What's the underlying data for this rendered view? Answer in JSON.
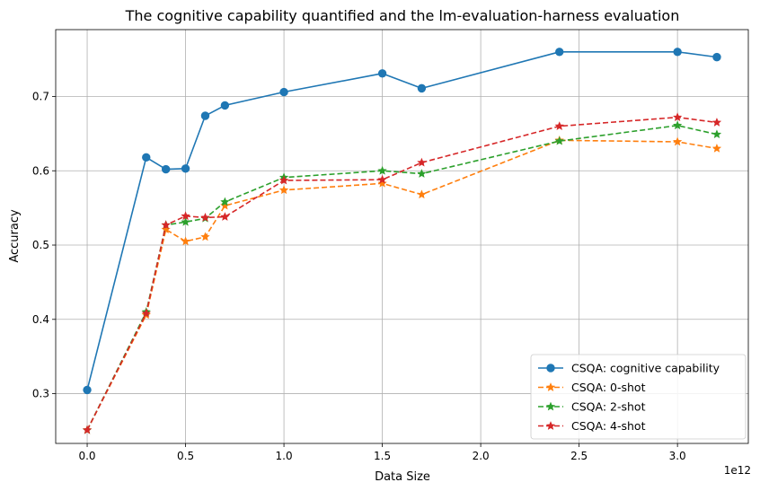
{
  "chart_data": {
    "type": "line",
    "title": "The cognitive capability quantified and the lm-evaluation-harness evaluation",
    "xlabel": "Data Size",
    "ylabel": "Accuracy",
    "x_offset_label": "1e12",
    "x_scale": 1000000000000.0,
    "xlim": [
      -0.16,
      3.36
    ],
    "ylim": [
      0.233,
      0.79
    ],
    "x_ticks": [
      0.0,
      0.5,
      1.0,
      1.5,
      2.0,
      2.5,
      3.0
    ],
    "x_tick_labels": [
      "0.0",
      "0.5",
      "1.0",
      "1.5",
      "2.0",
      "2.5",
      "3.0"
    ],
    "y_ticks": [
      0.3,
      0.4,
      0.5,
      0.6,
      0.7
    ],
    "y_tick_labels": [
      "0.3",
      "0.4",
      "0.5",
      "0.6",
      "0.7"
    ],
    "grid": true,
    "legend_position": "lower right",
    "x": [
      0.0,
      0.3,
      0.4,
      0.5,
      0.6,
      0.7,
      1.0,
      1.5,
      1.7,
      2.4,
      3.0,
      3.2
    ],
    "series": [
      {
        "name": "CSQA: cognitive capability",
        "color": "#1f77b4",
        "marker": "circle",
        "dash": "solid",
        "values": [
          0.305,
          0.618,
          0.602,
          0.603,
          0.674,
          0.688,
          0.706,
          0.731,
          0.711,
          0.76,
          0.76,
          0.753
        ]
      },
      {
        "name": "CSQA: 0-shot",
        "color": "#ff7f0e",
        "marker": "star",
        "dash": "dashed",
        "values": [
          0.251,
          0.406,
          0.521,
          0.505,
          0.511,
          0.553,
          0.574,
          0.583,
          0.568,
          0.641,
          0.639,
          0.63
        ]
      },
      {
        "name": "CSQA: 2-shot",
        "color": "#2ca02c",
        "marker": "star",
        "dash": "dashed",
        "values": [
          0.251,
          0.41,
          0.527,
          0.531,
          0.536,
          0.558,
          0.591,
          0.6,
          0.596,
          0.64,
          0.661,
          0.649
        ]
      },
      {
        "name": "CSQA: 4-shot",
        "color": "#d62728",
        "marker": "star",
        "dash": "dashed",
        "values": [
          0.251,
          0.408,
          0.527,
          0.539,
          0.537,
          0.538,
          0.587,
          0.588,
          0.611,
          0.66,
          0.672,
          0.665
        ]
      }
    ]
  }
}
